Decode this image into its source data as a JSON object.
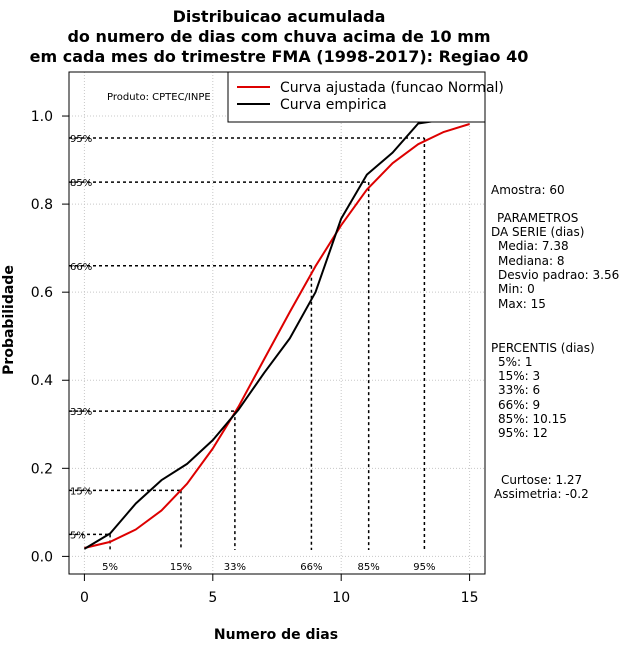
{
  "chart_data": {
    "type": "line",
    "title_lines": [
      "Distribuicao acumulada",
      "do numero de dias com chuva acima de 10 mm",
      "em cada mes do trimestre FMA (1998-2017): Regiao 40"
    ],
    "xlabel": "Numero de dias",
    "ylabel": "Probabilidade",
    "xlim": [
      -0.6,
      15.6
    ],
    "ylim": [
      -0.04,
      1.1
    ],
    "xticks": [
      0,
      5,
      10,
      15
    ],
    "yticks": [
      0.0,
      0.2,
      0.4,
      0.6,
      0.8,
      1.0
    ],
    "ytick_labels": [
      "0.0",
      "0.2",
      "0.4",
      "0.6",
      "0.8",
      "1.0"
    ],
    "grid": true,
    "product_label": "Produto: CPTEC/INPE",
    "legend_position": "top-right",
    "series": [
      {
        "name": "Curva ajustada (funcao Normal)",
        "color": "#dd0000",
        "x": [
          0,
          1,
          2,
          3,
          4,
          5,
          6,
          7,
          8,
          9,
          10,
          11,
          12,
          13,
          14,
          15
        ],
        "values": [
          0.019,
          0.033,
          0.061,
          0.104,
          0.165,
          0.245,
          0.34,
          0.448,
          0.555,
          0.659,
          0.752,
          0.833,
          0.893,
          0.936,
          0.964,
          0.982
        ]
      },
      {
        "name": "Curva empirica",
        "color": "#000000",
        "x": [
          0,
          1,
          2,
          3,
          4,
          5,
          6,
          7,
          8,
          9,
          10,
          11,
          12,
          13,
          14,
          15
        ],
        "values": [
          0.017,
          0.052,
          0.12,
          0.173,
          0.21,
          0.264,
          0.333,
          0.417,
          0.495,
          0.6,
          0.767,
          0.867,
          0.917,
          0.983,
          0.992,
          1.0
        ]
      }
    ],
    "percentile_marks": [
      {
        "label": "5%",
        "x": 1,
        "p": 0.05
      },
      {
        "label": "15%",
        "x": 3.76,
        "p": 0.15
      },
      {
        "label": "33%",
        "x": 5.86,
        "p": 0.33
      },
      {
        "label": "66%",
        "x": 8.84,
        "p": 0.66
      },
      {
        "label": "85%",
        "x": 11.07,
        "p": 0.85
      },
      {
        "label": "95%",
        "x": 13.24,
        "p": 0.95
      }
    ],
    "side_panel": {
      "sample": "Amostra: 60",
      "params_title_1": "PARAMETROS",
      "params_title_2": "DA SERIE (dias)",
      "params": [
        "Media: 7.38",
        "Mediana: 8",
        "Desvio padrao: 3.56",
        "Min: 0",
        "Max: 15"
      ],
      "percentis_title": "PERCENTIS (dias)",
      "percentis": [
        "5%: 1",
        "15%: 3",
        "33%: 6",
        "66%: 9",
        "85%: 10.15",
        "95%: 12"
      ],
      "kurtosis": "Curtose: 1.27",
      "skewness": "Assimetria: -0.2"
    }
  }
}
